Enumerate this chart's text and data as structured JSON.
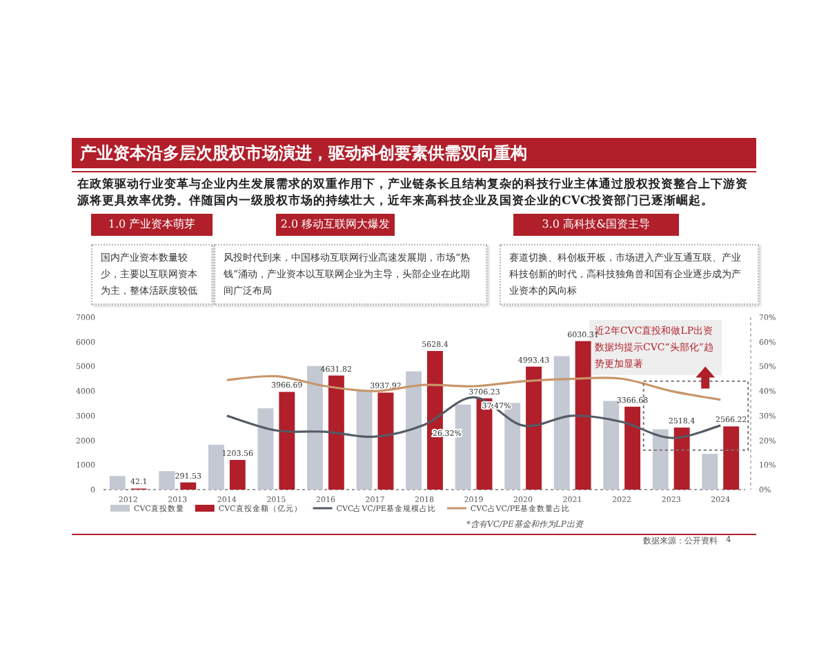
{
  "chart_data": {
    "type": "bar",
    "title": "产业资本沿多层次股权市场演进，驱动科创要素供需双向重构",
    "subtitle": "在政策驱动行业变革与企业内生发展需求的双重作用下，产业链条长且结构复杂的科技行业主体通过股权投资整合上下游资源将更具效率优势。伴随国内一级股权市场的持续壮大，近年来高科技企业及国资企业的CVC投资部门已逐渐崛起。",
    "categories": [
      "2012",
      "2013",
      "2014",
      "2015",
      "2016",
      "2017",
      "2018",
      "2019",
      "2020",
      "2021",
      "2022",
      "2023",
      "2024"
    ],
    "series": [
      {
        "name": "CVC直投数量",
        "color": "#c3c8d2",
        "values": [
          550,
          750,
          1820,
          3300,
          5020,
          4050,
          4800,
          3450,
          3520,
          5420,
          3600,
          2450,
          1450
        ]
      },
      {
        "name": "CVC直投金额（亿元）",
        "color": "#b01f2a",
        "values": [
          42.1,
          291.53,
          1203.56,
          3966.69,
          4631.82,
          3937.92,
          5628.4,
          3706.23,
          4993.43,
          6030.31,
          3366.68,
          2518.4,
          2566.22
        ],
        "value_labels": [
          "42.1",
          "291.53",
          "1203.56",
          "3966.69",
          "4631.82",
          "3937.92",
          "5628.4",
          "3706.23",
          "4993.43",
          "6030.31",
          "3366.68",
          "2518.4",
          "2566.22"
        ]
      },
      {
        "name": "CVC占VC/PE基金规模占比",
        "type": "line",
        "axis": "y2",
        "color": "#555b66",
        "values": [
          null,
          null,
          30,
          24,
          23.5,
          21.5,
          26.32,
          37.47,
          26,
          30,
          27.5,
          21,
          26
        ],
        "value_labels": [
          null,
          null,
          null,
          null,
          null,
          null,
          "26.32%",
          "37.47%",
          null,
          null,
          null,
          null,
          null
        ]
      },
      {
        "name": "CVC占VC/PE基金数量占比",
        "type": "line",
        "axis": "y2",
        "color": "#c8956a",
        "values": [
          null,
          null,
          44.5,
          46,
          42,
          40,
          42.5,
          42,
          44,
          45,
          45,
          40,
          36.5
        ]
      }
    ],
    "ylim": [
      0,
      7000
    ],
    "yticks": [
      0,
      1000,
      2000,
      3000,
      4000,
      5000,
      6000,
      7000
    ],
    "y2lim": [
      0,
      70
    ],
    "y2ticks": [
      {
        "value": 0,
        "label": "0%"
      },
      {
        "value": 10,
        "label": "10%"
      },
      {
        "value": 20,
        "label": "20%"
      },
      {
        "value": 30,
        "label": "30%"
      },
      {
        "value": 40,
        "label": "40%"
      },
      {
        "value": 50,
        "label": "50%"
      },
      {
        "value": 60,
        "label": "60%"
      },
      {
        "value": 70,
        "label": "70%"
      }
    ],
    "legend": "bottom",
    "grid": false,
    "annotations": [
      "1.0 产业资本萌芽",
      "国内产业资本数量较少，主要以互联网资本为主，整体活跃度较低",
      "2.0 移动互联网大爆发",
      "风投时代到来，中国移动互联网行业高速发展期，市场“热钱”涌动，产业资本以互联网企业为主导，头部企业在此期间广泛布局",
      "3.0 高科技&国资主导",
      "赛道切换、科创板开板，市场进入产业互通互联、产业科技创新的时代，高科技独角兽和国有企业逐步成为产业资本的风向标",
      "近2年CVC直投和做LP出资数据均提示CVC“头部化”趋势更加显著",
      "*含有VC/PE基金和作为LP出资",
      "数据来源：公开资料",
      "4"
    ]
  }
}
